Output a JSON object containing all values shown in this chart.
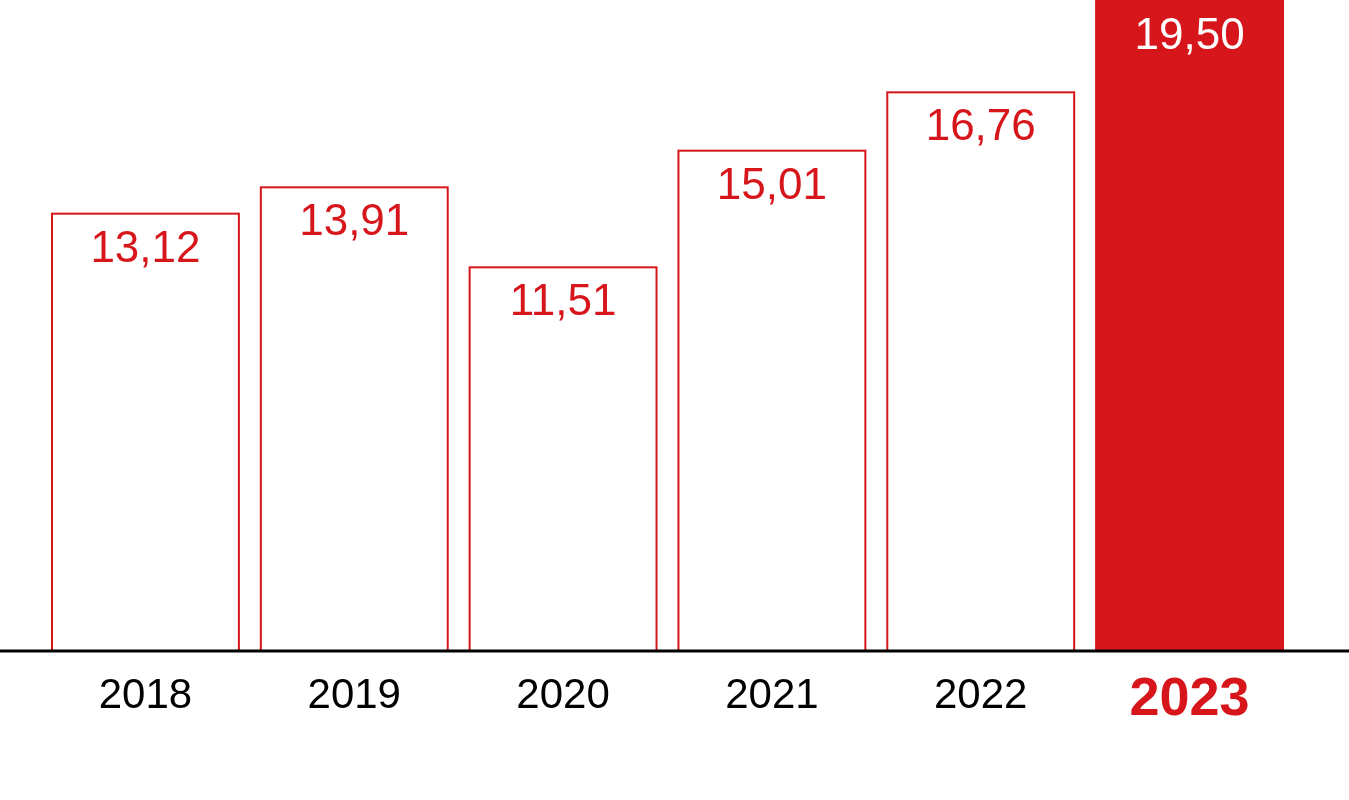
{
  "chart_data": {
    "type": "bar",
    "categories": [
      "2018",
      "2019",
      "2020",
      "2021",
      "2022",
      "2023"
    ],
    "values": [
      13.12,
      13.91,
      11.51,
      15.01,
      16.76,
      19.5
    ],
    "value_labels": [
      "13,12",
      "13,91",
      "11,51",
      "15,01",
      "16,76",
      "19,50"
    ],
    "color": "#d7161b",
    "colors": [
      "#ffffff",
      "#ffffff",
      "#ffffff",
      "#ffffff",
      "#ffffff",
      "#d7161b"
    ],
    "ylim": [
      0,
      19.5
    ],
    "tick_labels": "x"
  }
}
